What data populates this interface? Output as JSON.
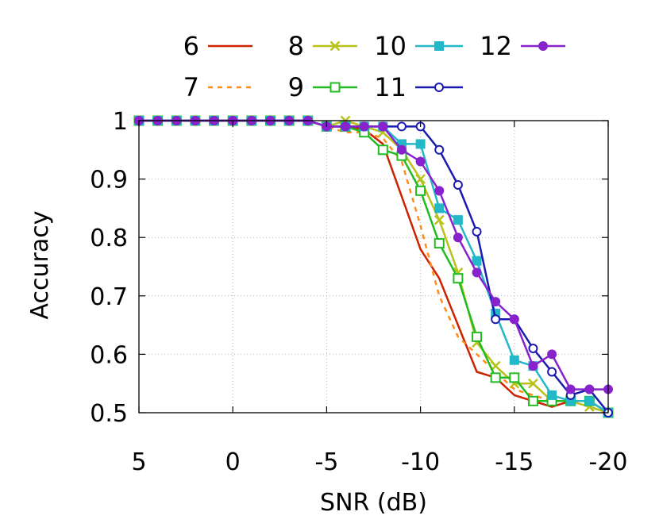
{
  "chart_data": {
    "type": "line",
    "title": "",
    "xlabel": "SNR (dB)",
    "ylabel": "Accuracy",
    "xlim": [
      5,
      -20
    ],
    "ylim": [
      0.5,
      1
    ],
    "x_reversed": true,
    "grid": true,
    "legend_position": "top",
    "x_ticks": [
      "5",
      "0",
      "-5",
      "-10",
      "-15",
      "-20"
    ],
    "x_tick_values": [
      5,
      0,
      -5,
      -10,
      -15,
      -20
    ],
    "y_ticks": [
      "0.5",
      "0.6",
      "0.7",
      "0.8",
      "0.9",
      "1"
    ],
    "y_tick_values": [
      0.5,
      0.6,
      0.7,
      0.8,
      0.9,
      1
    ],
    "x": [
      5,
      4,
      3,
      2,
      1,
      0,
      -1,
      -2,
      -3,
      -4,
      -5,
      -6,
      -7,
      -8,
      -9,
      -10,
      -11,
      -12,
      -13,
      -14,
      -15,
      -16,
      -17,
      -18,
      -19,
      -20
    ],
    "series": [
      {
        "name": "6",
        "color": "#cc2200",
        "dash": "solid",
        "marker": "none",
        "values": [
          1,
          1,
          1,
          1,
          1,
          1,
          1,
          1,
          1,
          1,
          0.99,
          0.99,
          0.985,
          0.96,
          0.87,
          0.78,
          0.73,
          0.65,
          0.57,
          0.56,
          0.53,
          0.52,
          0.51,
          0.52,
          0.52,
          0.5
        ]
      },
      {
        "name": "7",
        "color": "#ff8c1a",
        "dash": "dashed",
        "marker": "none",
        "values": [
          1,
          1,
          1,
          1,
          1,
          1,
          1,
          1,
          1,
          1,
          0.99,
          0.98,
          0.98,
          0.97,
          0.93,
          0.82,
          0.7,
          0.63,
          0.6,
          0.57,
          0.54,
          0.53,
          0.52,
          0.52,
          0.51,
          0.5
        ]
      },
      {
        "name": "8",
        "color": "#b8c21a",
        "dash": "solid",
        "marker": "x",
        "values": [
          1,
          1,
          1,
          1,
          1,
          1,
          1,
          1,
          1,
          1,
          0.99,
          1.0,
          0.99,
          0.98,
          0.95,
          0.9,
          0.83,
          0.74,
          0.62,
          0.58,
          0.55,
          0.55,
          0.52,
          0.52,
          0.51,
          0.5
        ]
      },
      {
        "name": "9",
        "color": "#22bb22",
        "dash": "solid",
        "marker": "open-square",
        "values": [
          1,
          1,
          1,
          1,
          1,
          1,
          1,
          1,
          1,
          1,
          0.99,
          0.99,
          0.98,
          0.95,
          0.94,
          0.88,
          0.79,
          0.73,
          0.63,
          0.56,
          0.56,
          0.52,
          0.52,
          0.52,
          0.52,
          0.5
        ]
      },
      {
        "name": "10",
        "color": "#22b8c8",
        "dash": "solid",
        "marker": "filled-square",
        "values": [
          1,
          1,
          1,
          1,
          1,
          1,
          1,
          1,
          1,
          1,
          0.99,
          0.99,
          0.99,
          0.99,
          0.96,
          0.96,
          0.85,
          0.83,
          0.76,
          0.67,
          0.59,
          0.58,
          0.53,
          0.52,
          0.52,
          0.5
        ]
      },
      {
        "name": "11",
        "color": "#1a1ab0",
        "dash": "solid",
        "marker": "open-circle",
        "values": [
          1,
          1,
          1,
          1,
          1,
          1,
          1,
          1,
          1,
          1,
          0.99,
          0.99,
          0.99,
          0.99,
          0.99,
          0.99,
          0.95,
          0.89,
          0.81,
          0.66,
          0.66,
          0.61,
          0.57,
          0.53,
          0.54,
          0.5
        ]
      },
      {
        "name": "12",
        "color": "#8822cc",
        "dash": "solid",
        "marker": "filled-circle",
        "values": [
          1,
          1,
          1,
          1,
          1,
          1,
          1,
          1,
          1,
          1,
          0.99,
          0.99,
          0.99,
          0.99,
          0.95,
          0.93,
          0.88,
          0.8,
          0.74,
          0.69,
          0.66,
          0.58,
          0.6,
          0.54,
          0.54,
          0.54
        ]
      }
    ]
  }
}
